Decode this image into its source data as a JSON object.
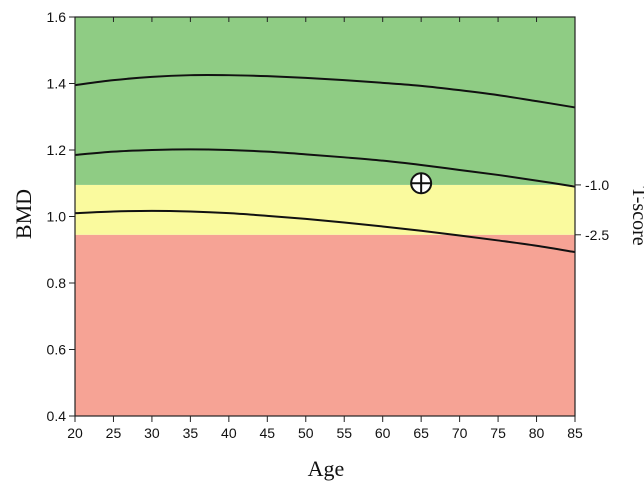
{
  "chart_data": {
    "type": "line",
    "title": "",
    "xlabel": "Age",
    "ylabel": "BMD",
    "right_axis_label": "T-score",
    "xlim": [
      20,
      85
    ],
    "ylim": [
      0.4,
      1.6
    ],
    "x_ticks": [
      "20",
      "25",
      "30",
      "35",
      "40",
      "45",
      "50",
      "55",
      "60",
      "65",
      "70",
      "75",
      "80",
      "85"
    ],
    "y_ticks": [
      "0.4",
      "0.6",
      "0.8",
      "1.0",
      "1.2",
      "1.4",
      "1.6"
    ],
    "bands": [
      {
        "y0": 0.4,
        "y1": 0.945,
        "color": "#f6a395"
      },
      {
        "y0": 0.945,
        "y1": 1.095,
        "color": "#fafa9e"
      },
      {
        "y0": 1.095,
        "y1": 1.6,
        "color": "#8fcc84"
      }
    ],
    "threshold_labels": [
      {
        "text": "-1.0",
        "y": 1.095
      },
      {
        "text": "-2.5",
        "y": 0.945
      }
    ],
    "series": [
      {
        "x": [
          20,
          25,
          30,
          35,
          40,
          45,
          50,
          55,
          60,
          65,
          70,
          75,
          80,
          85
        ],
        "y": [
          1.395,
          1.41,
          1.42,
          1.425,
          1.425,
          1.422,
          1.417,
          1.41,
          1.402,
          1.393,
          1.38,
          1.365,
          1.347,
          1.328
        ]
      },
      {
        "x": [
          20,
          25,
          30,
          35,
          40,
          45,
          50,
          55,
          60,
          65,
          70,
          75,
          80,
          85
        ],
        "y": [
          1.185,
          1.195,
          1.2,
          1.202,
          1.2,
          1.195,
          1.187,
          1.178,
          1.168,
          1.155,
          1.14,
          1.125,
          1.108,
          1.09
        ]
      },
      {
        "x": [
          20,
          25,
          30,
          35,
          40,
          45,
          50,
          55,
          60,
          65,
          70,
          75,
          80,
          85
        ],
        "y": [
          1.01,
          1.015,
          1.017,
          1.015,
          1.01,
          1.002,
          0.993,
          0.982,
          0.97,
          0.957,
          0.943,
          0.928,
          0.912,
          0.893
        ]
      }
    ],
    "marker": {
      "x": 65,
      "y": 1.1,
      "symbol": "circle-plus"
    },
    "grid": false
  }
}
